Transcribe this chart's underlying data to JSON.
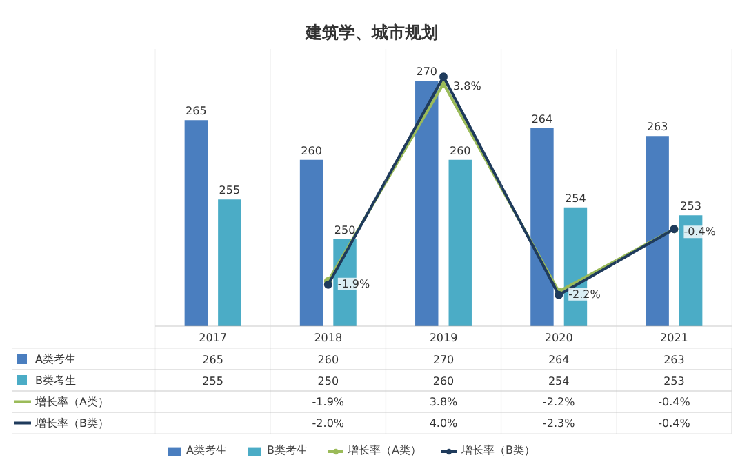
{
  "chart_data": {
    "type": "bar",
    "title": "建筑学、城市规划",
    "categories": [
      "2017",
      "2018",
      "2019",
      "2020",
      "2021"
    ],
    "series": [
      {
        "name": "A类考生",
        "color": "#4a7ebf",
        "values": [
          265,
          260,
          270,
          264,
          263
        ],
        "value_labels": [
          "265",
          "260",
          "270",
          "264",
          "263"
        ]
      },
      {
        "name": "B类考生",
        "color": "#4bacc6",
        "values": [
          255,
          250,
          260,
          254,
          253
        ],
        "value_labels": [
          "255",
          "250",
          "260",
          "254",
          "253"
        ]
      },
      {
        "name": "增长率（A类）",
        "type": "line",
        "axis": "y2",
        "color": "#9bbb59",
        "marker": "circle",
        "values": [
          null,
          -1.9,
          3.8,
          -2.2,
          -0.4
        ],
        "value_labels": [
          null,
          "-1.9%",
          "3.8%",
          "-2.2%",
          "-0.4%"
        ]
      },
      {
        "name": "增长率（B类）",
        "type": "line",
        "axis": "y2",
        "color": "#1f3b5c",
        "marker": "circle",
        "values": [
          null,
          -2.0,
          4.0,
          -2.3,
          -0.4
        ],
        "value_labels": [
          null,
          "-2.0%",
          "4.0%",
          "-2.3%",
          "-0.4%"
        ]
      }
    ],
    "ylim": [
      239,
      274
    ],
    "y2lim": [
      -3.2,
      4.8
    ],
    "tick_labels": "x",
    "grid": false,
    "legend": "bottom"
  }
}
